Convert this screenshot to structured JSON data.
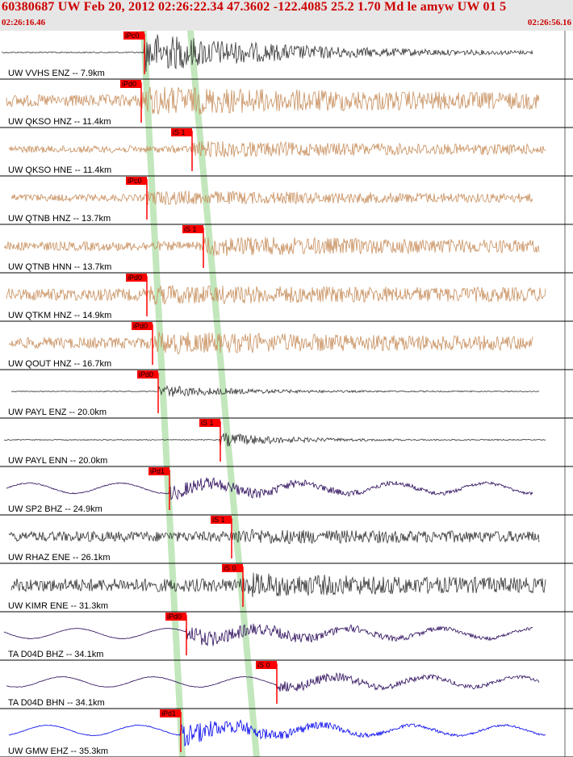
{
  "header": {
    "title": "60380687 UW Feb 20, 2012 02:26:22.34   47.3602 -122.4085 25.2 1.70 Md le amyw UW 01   5",
    "start_time": "02:26:16.46",
    "end_time": "02:26:56.16"
  },
  "colors": {
    "header_bg": "#e6e6e6",
    "title_text": "#cc0000",
    "pick_red": "#ff0000",
    "phase_band": "#b7e3b0",
    "trace_dark": "#333333",
    "trace_tan": "#c8905f",
    "trace_purple": "#2a0a5a",
    "trace_blue": "#0000ee"
  },
  "traces": [
    {
      "label": "UW VVHS ENZ -- 7.9km",
      "color": "#333333",
      "pick": "iPc0",
      "noise": 0.06,
      "burst": 1.0,
      "onset": 0.255,
      "decay": 0.25
    },
    {
      "label": "UW QKSO HNZ -- 11.4km",
      "color": "#c8905f",
      "pick": "iPd0",
      "noise": 0.6,
      "burst": 0.45,
      "onset": 0.25,
      "decay": 0.5
    },
    {
      "label": "UW QKSO HNE -- 11.4km",
      "color": "#c8905f",
      "pick": "iS 1",
      "noise": 0.35,
      "burst": 0.25,
      "onset": 0.34,
      "decay": 0.5
    },
    {
      "label": "UW QTNB HNZ -- 13.7km",
      "color": "#c8905f",
      "pick": "iPc0",
      "noise": 0.35,
      "burst": 0.2,
      "onset": 0.26,
      "decay": 0.5
    },
    {
      "label": "UW QTNB HNN -- 13.7km",
      "color": "#c8905f",
      "pick": "iS 1",
      "noise": 0.45,
      "burst": 0.3,
      "onset": 0.36,
      "decay": 0.5
    },
    {
      "label": "UW QTKM HNZ -- 14.9km",
      "color": "#c8905f",
      "pick": "iPd0",
      "noise": 0.6,
      "burst": 0.2,
      "onset": 0.26,
      "decay": 0.5
    },
    {
      "label": "UW QOUT HNZ -- 16.7km",
      "color": "#c8905f",
      "pick": "iPd0",
      "noise": 0.55,
      "burst": 0.3,
      "onset": 0.27,
      "decay": 0.5
    },
    {
      "label": "UW PAYL ENZ -- 20.0km",
      "color": "#333333",
      "pick": "iPd0",
      "noise": 0.04,
      "burst": 0.3,
      "onset": 0.28,
      "decay": 0.15
    },
    {
      "label": "UW PAYL ENN -- 20.0km",
      "color": "#333333",
      "pick": "iS 1",
      "noise": 0.04,
      "burst": 0.35,
      "onset": 0.39,
      "decay": 0.12
    },
    {
      "label": "UW SP2 BHZ -- 24.9km",
      "color": "#2a0a5a",
      "pick": "iPd1",
      "noise": 0.08,
      "burst": 0.6,
      "onset": 0.3,
      "decay": 0.3
    },
    {
      "label": "UW RHAZ ENE -- 26.1km",
      "color": "#333333",
      "pick": "iS 1",
      "noise": 0.5,
      "burst": 0.15,
      "onset": 0.41,
      "decay": 0.3
    },
    {
      "label": "UW KIMR ENE -- 31.3km",
      "color": "#333333",
      "pick": "iS 0",
      "noise": 0.65,
      "burst": 0.3,
      "onset": 0.43,
      "decay": 0.3
    },
    {
      "label": "TA D04D BHZ -- 34.1km",
      "color": "#2a0a5a",
      "pick": "iPd0",
      "noise": 0.05,
      "burst": 0.7,
      "onset": 0.33,
      "decay": 0.3
    },
    {
      "label": "TA D04D BHN -- 34.1km",
      "color": "#2a0a5a",
      "pick": "iS 0",
      "noise": 0.05,
      "burst": 0.45,
      "onset": 0.49,
      "decay": 0.3
    },
    {
      "label": "UW GMW EHZ -- 35.3km",
      "color": "#0000ee",
      "pick": "iPd1",
      "noise": 0.06,
      "burst": 0.9,
      "onset": 0.32,
      "decay": 0.2
    }
  ]
}
